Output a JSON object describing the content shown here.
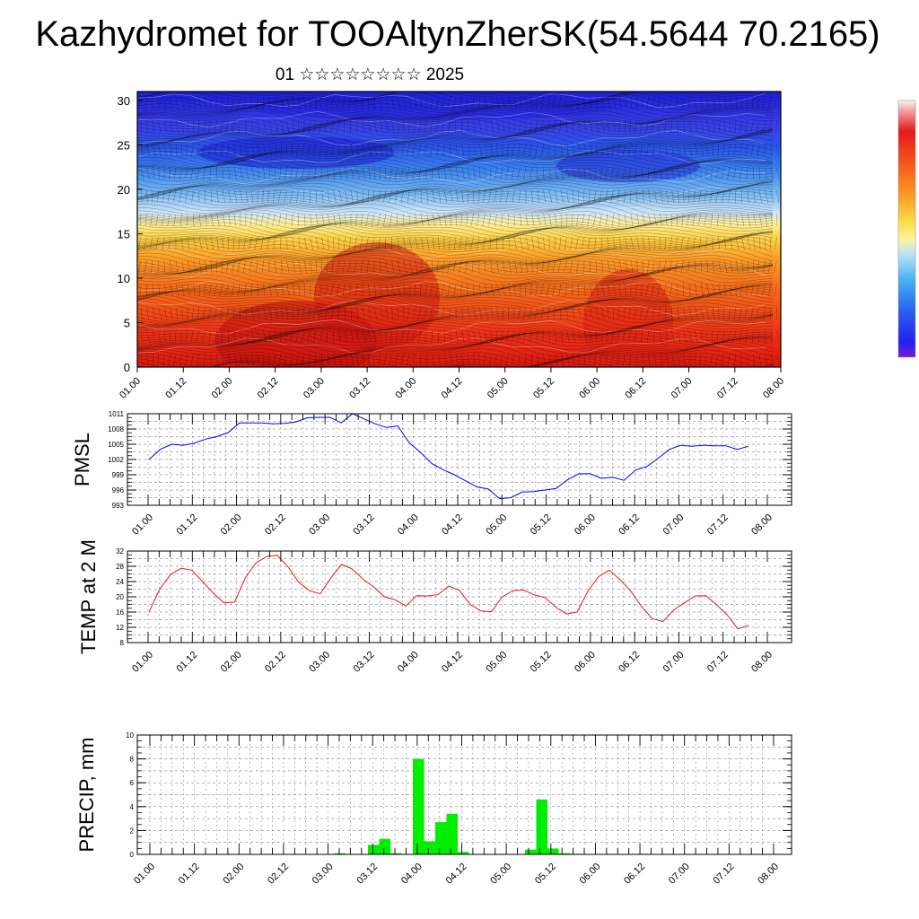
{
  "title": "Kazhydromet for TOOAltynZherSK(54.5644 70.2165)",
  "subtitle": "01 ☆☆☆☆☆☆☆☆ 2025",
  "chart_data": [
    {
      "type": "heatmap",
      "name": "vertical-cross-section",
      "x_ticks": [
        "01.00",
        "01.12",
        "02.00",
        "02.12",
        "03.00",
        "03.12",
        "04.00",
        "04.12",
        "05.00",
        "05.12",
        "06.00",
        "06.12",
        "07.00",
        "07.12",
        "08.00"
      ],
      "y_ticks": [
        0,
        5,
        10,
        15,
        20,
        25,
        30
      ],
      "ylim": [
        0,
        31
      ],
      "colors": {
        "warm": "#e41a1c",
        "mid": "#fde24a",
        "cool": "#3d5ef5",
        "top": "#2020e0"
      }
    },
    {
      "type": "line",
      "ylabel": "PMSL",
      "x_ticks": [
        "01.00",
        "01.12",
        "02.00",
        "02.12",
        "03.00",
        "03.12",
        "04.00",
        "04.12",
        "05.00",
        "05.12",
        "06.00",
        "06.12",
        "07.00",
        "07.12",
        "08.00"
      ],
      "y_ticks": [
        993,
        996,
        999,
        1002,
        1005,
        1008,
        1011
      ],
      "ylim": [
        993,
        1011
      ],
      "color": "#0000ff",
      "values": [
        1002.0,
        1004.0,
        1005.0,
        1004.8,
        1005.2,
        1006.0,
        1006.5,
        1007.3,
        1009.2,
        1009.2,
        1009.2,
        1009.0,
        1009.1,
        1009.4,
        1010.2,
        1010.3,
        1010.3,
        1009.2,
        1011.0,
        1010.0,
        1009.0,
        1008.3,
        1008.6,
        1005.3,
        1003.4,
        1001.2,
        1000.0,
        999.0,
        997.8,
        996.6,
        996.2,
        994.3,
        994.5,
        995.6,
        995.7,
        996.0,
        996.3,
        998.0,
        999.2,
        999.2,
        998.3,
        998.5,
        997.9,
        999.9,
        1000.6,
        1002.2,
        1004.0,
        1004.8,
        1004.6,
        1004.8,
        1004.7,
        1004.7,
        1004.0,
        1004.6
      ]
    },
    {
      "type": "line",
      "ylabel": "TEMP at 2 M",
      "x_ticks": [
        "01.00",
        "01.12",
        "02.00",
        "02.12",
        "03.00",
        "03.12",
        "04.00",
        "04.12",
        "05.00",
        "05.12",
        "06.00",
        "06.12",
        "07.00",
        "07.12",
        "08.00"
      ],
      "y_ticks": [
        8,
        12,
        16,
        20,
        24,
        28,
        32
      ],
      "ylim": [
        8,
        32
      ],
      "color": "#e41a1c",
      "values": [
        16.0,
        22.0,
        25.8,
        27.5,
        27.0,
        24.0,
        21.0,
        18.4,
        18.6,
        25.0,
        28.9,
        30.6,
        30.9,
        27.8,
        23.8,
        21.6,
        20.8,
        25.0,
        28.5,
        27.3,
        24.6,
        22.6,
        20.0,
        19.2,
        17.6,
        20.3,
        20.2,
        20.6,
        22.8,
        21.7,
        18.0,
        16.3,
        16.1,
        20.0,
        21.6,
        21.8,
        20.5,
        19.8,
        17.3,
        15.5,
        16.0,
        21.5,
        25.3,
        27.0,
        24.5,
        21.5,
        17.5,
        14.3,
        13.5,
        16.5,
        18.4,
        20.2,
        20.3,
        18.0,
        15.3,
        11.6,
        12.5
      ]
    },
    {
      "type": "bar",
      "ylabel": "PRECIP, mm",
      "x_ticks": [
        "01.00",
        "01.12",
        "02.00",
        "02.12",
        "03.00",
        "03.12",
        "04.00",
        "04.12",
        "05.00",
        "05.12",
        "06.00",
        "06.12",
        "07.00",
        "07.12",
        "08.00"
      ],
      "y_ticks": [
        0,
        2,
        4,
        6,
        8,
        10
      ],
      "ylim": [
        0,
        10
      ],
      "color": "#00ee00",
      "values": [
        0,
        0,
        0,
        0,
        0,
        0,
        0,
        0,
        0,
        0,
        0,
        0,
        0,
        0,
        0,
        0,
        0,
        0.1,
        0,
        0,
        0.8,
        1.3,
        0.1,
        0,
        8.0,
        1.1,
        2.7,
        3.4,
        0.2,
        0,
        0,
        0,
        0,
        0,
        0.4,
        4.6,
        0.5,
        0.1,
        0.05,
        0,
        0,
        0,
        0,
        0,
        0.05,
        0,
        0,
        0,
        0,
        0,
        0,
        0,
        0,
        0,
        0,
        0
      ]
    }
  ]
}
